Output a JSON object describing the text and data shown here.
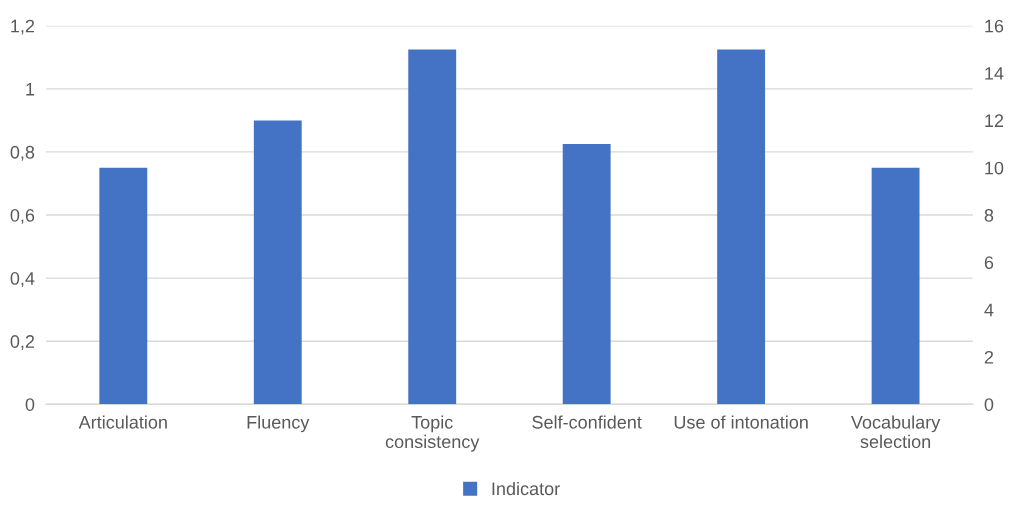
{
  "chart_data": {
    "type": "bar",
    "categories": [
      "Articulation",
      "Fluency",
      "Topic\nconsistency",
      "Self-confident",
      "Use of intonation",
      "Vocabulary\nselection"
    ],
    "series": [
      {
        "name": "Indicator",
        "color": "#4472c4",
        "axis": "y2",
        "values": [
          10,
          12,
          15,
          11,
          15,
          10
        ]
      }
    ],
    "ylim": [
      0,
      1.2
    ],
    "yticks": [
      0,
      {
        "value": 0.2,
        "label": "0,2"
      },
      {
        "value": 0.4,
        "label": "0,4"
      },
      {
        "value": 0.6,
        "label": "0,6"
      },
      {
        "value": 0.8,
        "label": "0,8"
      },
      1,
      {
        "value": 1.2,
        "label": "1,2"
      }
    ],
    "y2lim": [
      0,
      16
    ],
    "y2ticks": [
      0,
      2,
      4,
      6,
      8,
      10,
      12,
      14,
      16
    ],
    "grid": "y",
    "legend": "bottom"
  }
}
